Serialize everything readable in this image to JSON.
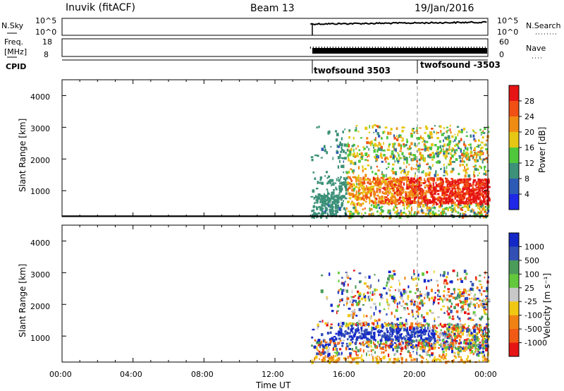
{
  "header": {
    "station": "Inuvik (fitACF)",
    "beam": "Beam 13",
    "date": "19/Jan/2016"
  },
  "noise_panel": {
    "left_label": "N.Sky",
    "right_label": "N.Search",
    "left_ticks": [
      "10^5",
      "10^0"
    ],
    "right_ticks": [
      "10^5",
      "10^0"
    ]
  },
  "freq_panel": {
    "left_label_top": "Freq.",
    "left_label_bottom": "[MHz]",
    "right_label": "Nave",
    "left_ticks": [
      "18",
      "8"
    ],
    "right_ticks": [
      "60",
      "0"
    ]
  },
  "cpid": {
    "label": "CPID",
    "programs": [
      {
        "name": "twofsound 3503",
        "start_hour": 14.0
      },
      {
        "name": "twofsound -3503",
        "start_hour": 20.0
      }
    ]
  },
  "panels": [
    {
      "id": "power",
      "ylabel": "Slant Range [km]",
      "yticks": [
        "1000",
        "2000",
        "3000",
        "4000"
      ],
      "colorbar_label": "Power [dB]",
      "colorbar_ticks": [
        "4",
        "8",
        "12",
        "16",
        "20",
        "24",
        "28"
      ],
      "colors": [
        "#1e28e6",
        "#2d5ab4",
        "#3c9178",
        "#50c83c",
        "#e6c814",
        "#f08c14",
        "#f05014",
        "#e61414"
      ]
    },
    {
      "id": "velocity",
      "ylabel": "Slant Range [km]",
      "yticks": [
        "1000",
        "2000",
        "3000",
        "4000"
      ],
      "colorbar_label": "Velocity [m s⁻¹]",
      "colorbar_ticks": [
        "1000",
        "500",
        "100",
        "25",
        "-25",
        "-100",
        "-500",
        "-1000"
      ],
      "colors": [
        "#1428c8",
        "#3250b4",
        "#4b9b5a",
        "#64c83c",
        "#c8c8c8",
        "#f0c814",
        "#f08214",
        "#f05a14",
        "#e61414"
      ]
    }
  ],
  "xaxis": {
    "label": "Time UT",
    "ticks": [
      "00:00",
      "04:00",
      "08:00",
      "12:00",
      "16:00",
      "20:00",
      "00:00"
    ]
  },
  "chart_data": {
    "type": "heatmap",
    "x_range_hours": [
      0,
      24
    ],
    "y_range_km": [
      180,
      4500
    ],
    "data_start_hour": 14.0,
    "program_change_hour": 20.0,
    "power_range_db": [
      0,
      32
    ],
    "velocity_range_ms": [
      -1000,
      1000
    ]
  }
}
